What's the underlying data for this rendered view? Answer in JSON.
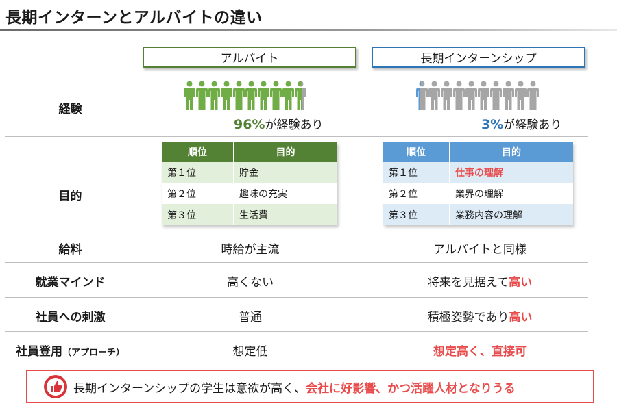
{
  "title": "長期インターンとアルバイトの違い",
  "columns": {
    "a": "アルバイト",
    "b": "長期インターンシップ"
  },
  "rows": {
    "experience": "経験",
    "purpose": "目的",
    "salary": "給料",
    "mindset": "就業マインド",
    "stimulus": "社員への刺激",
    "hiring": "社員登用",
    "hiring_sub": "（アプローチ）"
  },
  "experience": {
    "a_pct": "96%",
    "a_suffix": "が経験あり",
    "a_fraction": 0.96,
    "b_pct": "3%",
    "b_suffix": "が経験あり",
    "b_fraction": 0.03
  },
  "purpose_table": {
    "head_rank": "順位",
    "head_goal": "目的",
    "a": [
      {
        "rank": "第１位",
        "goal": "貯金"
      },
      {
        "rank": "第２位",
        "goal": "趣味の充実"
      },
      {
        "rank": "第３位",
        "goal": "生活費"
      }
    ],
    "b": [
      {
        "rank": "第１位",
        "goal": "仕事の理解"
      },
      {
        "rank": "第２位",
        "goal": "業界の理解"
      },
      {
        "rank": "第３位",
        "goal": "業務内容の理解"
      }
    ]
  },
  "salary": {
    "a": "時給が主流",
    "b": "アルバイトと同様"
  },
  "mindset": {
    "a": "高くない",
    "b_prefix": "将来を見据えて",
    "b_highlight": "高い"
  },
  "stimulus": {
    "a": "普通",
    "b_prefix": "積極姿勢であり",
    "b_highlight": "高い"
  },
  "hiring": {
    "a": "想定低",
    "b": "想定高く、直接可"
  },
  "callout": {
    "text": "長期インターンシップの学生は意欲が高く、",
    "highlight": "会社に好影響、かつ活躍人材となりうる"
  },
  "colors": {
    "green": "#548235",
    "figure_green": "#70ad47",
    "blue": "#2e75b6",
    "figure_blue": "#5b9bd5",
    "gray": "#a6a6a6",
    "red": "#e84c4c"
  },
  "icons": {
    "person": "person-icon",
    "thumb": "thumbs-up-icon"
  }
}
